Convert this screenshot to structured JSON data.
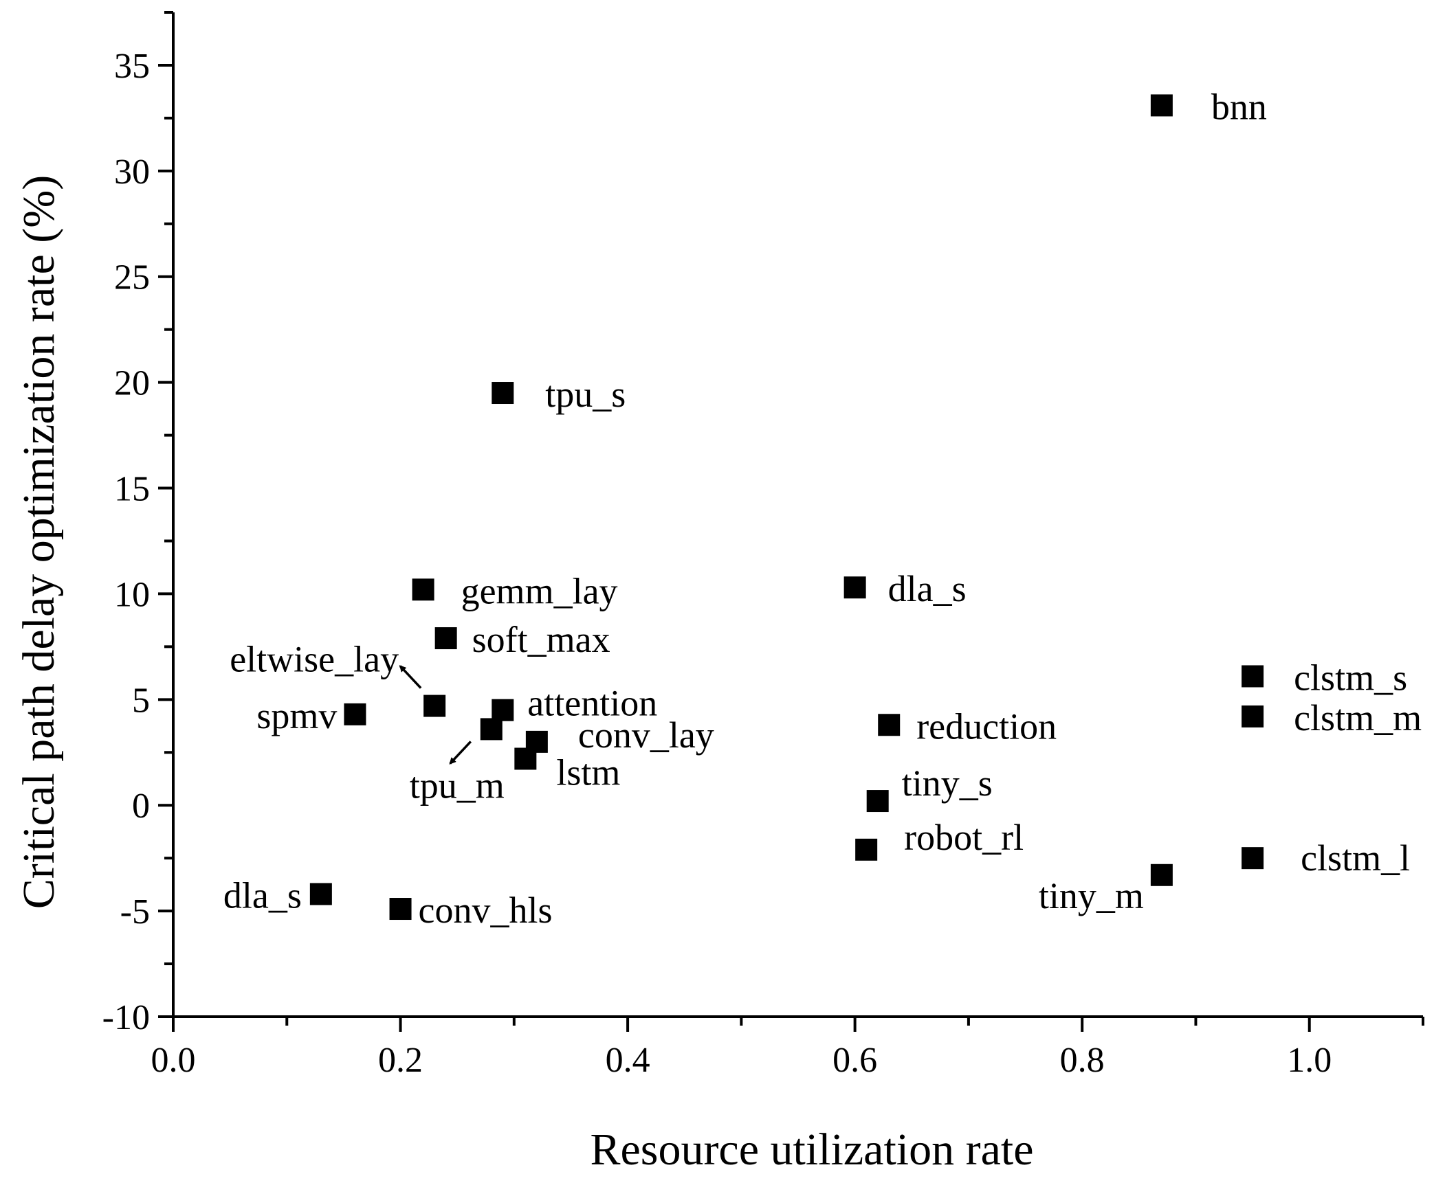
{
  "chart_data": {
    "type": "scatter",
    "title": "",
    "xlabel": "Resource utilization rate",
    "ylabel": "Critical path delay optimization rate (%)",
    "xlim": [
      0.0,
      1.1
    ],
    "ylim": [
      -10,
      37.5
    ],
    "x_major_ticks": [
      0.0,
      0.2,
      0.4,
      0.6,
      0.8,
      1.0
    ],
    "x_tick_labels": [
      "0.0",
      "0.2",
      "0.4",
      "0.6",
      "0.8",
      "1.0"
    ],
    "y_major_ticks": [
      -10,
      -5,
      0,
      5,
      10,
      15,
      20,
      25,
      30,
      35
    ],
    "y_tick_labels": [
      "-10",
      "-5",
      "0",
      "5",
      "10",
      "15",
      "20",
      "25",
      "30",
      "35"
    ],
    "grid": false,
    "legend": "none",
    "marker_color": "#000000",
    "points": [
      {
        "label": "bnn",
        "x": 0.87,
        "y": 33.1
      },
      {
        "label": "tpu_s",
        "x": 0.29,
        "y": 19.5
      },
      {
        "label": "gemm_lay",
        "x": 0.22,
        "y": 10.2
      },
      {
        "label": "dla_s",
        "x": 0.6,
        "y": 10.3
      },
      {
        "label": "soft_max",
        "x": 0.24,
        "y": 7.9
      },
      {
        "label": "eltwise_lay",
        "x": 0.23,
        "y": 4.7
      },
      {
        "label": "spmv",
        "x": 0.16,
        "y": 4.3
      },
      {
        "label": "attention",
        "x": 0.29,
        "y": 4.5
      },
      {
        "label": "tpu_m",
        "x": 0.28,
        "y": 3.6
      },
      {
        "label": "conv_lay",
        "x": 0.32,
        "y": 3.0
      },
      {
        "label": "lstm",
        "x": 0.31,
        "y": 2.2
      },
      {
        "label": "clstm_s",
        "x": 0.95,
        "y": 6.1
      },
      {
        "label": "clstm_m",
        "x": 0.95,
        "y": 4.2
      },
      {
        "label": "reduction",
        "x": 0.63,
        "y": 3.8
      },
      {
        "label": "tiny_s",
        "x": 0.62,
        "y": 0.2
      },
      {
        "label": "robot_rl",
        "x": 0.61,
        "y": -2.1
      },
      {
        "label": "clstm_l",
        "x": 0.95,
        "y": -2.5
      },
      {
        "label": "tiny_m",
        "x": 0.87,
        "y": -3.3
      },
      {
        "label": "dla_s",
        "x": 0.13,
        "y": -4.2
      },
      {
        "label": "conv_hls",
        "x": 0.2,
        "y": -4.9
      }
    ]
  }
}
